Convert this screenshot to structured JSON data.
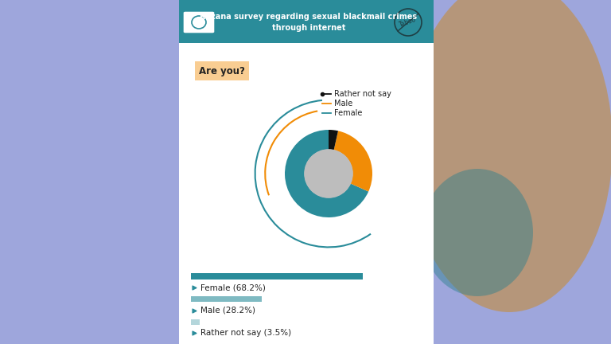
{
  "chart_data": {
    "type": "pie",
    "title": "Rozana survey regarding sexual blackmail crimes through internet",
    "subtitle": "Are you?",
    "categories": [
      "Female",
      "Male",
      "Rather not say"
    ],
    "values": [
      68.2,
      28.2,
      3.5
    ],
    "colors": [
      "#2a8c9a",
      "#f18c06",
      "#111111"
    ],
    "value_labels": [
      "Female (68.2%)",
      "Male (28.2%)",
      "Rather not say (3.5%)"
    ],
    "annotations": [
      "Taboo"
    ],
    "data_labels": true
  }
}
